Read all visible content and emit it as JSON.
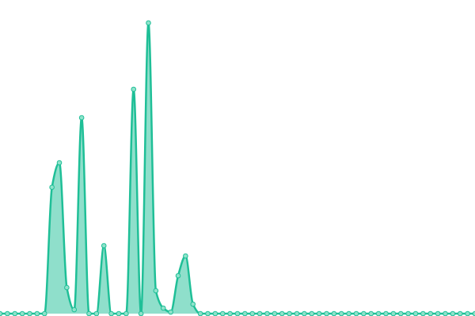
{
  "chart_data": {
    "type": "area",
    "values": [
      0,
      0,
      0,
      0,
      0,
      0,
      0,
      160,
      191,
      33,
      5,
      248,
      0,
      0,
      86,
      0,
      0,
      0,
      284,
      0,
      368,
      29,
      7,
      2,
      48,
      73,
      12,
      0,
      0,
      0,
      0,
      0,
      0,
      0,
      0,
      0,
      0,
      0,
      0,
      0,
      0,
      0,
      0,
      0,
      0,
      0,
      0,
      0,
      0,
      0,
      0,
      0,
      0,
      0,
      0,
      0,
      0,
      0,
      0,
      0,
      0,
      0,
      0,
      0,
      0
    ],
    "color": "#1fbf97",
    "ylim": [
      0,
      400
    ]
  }
}
